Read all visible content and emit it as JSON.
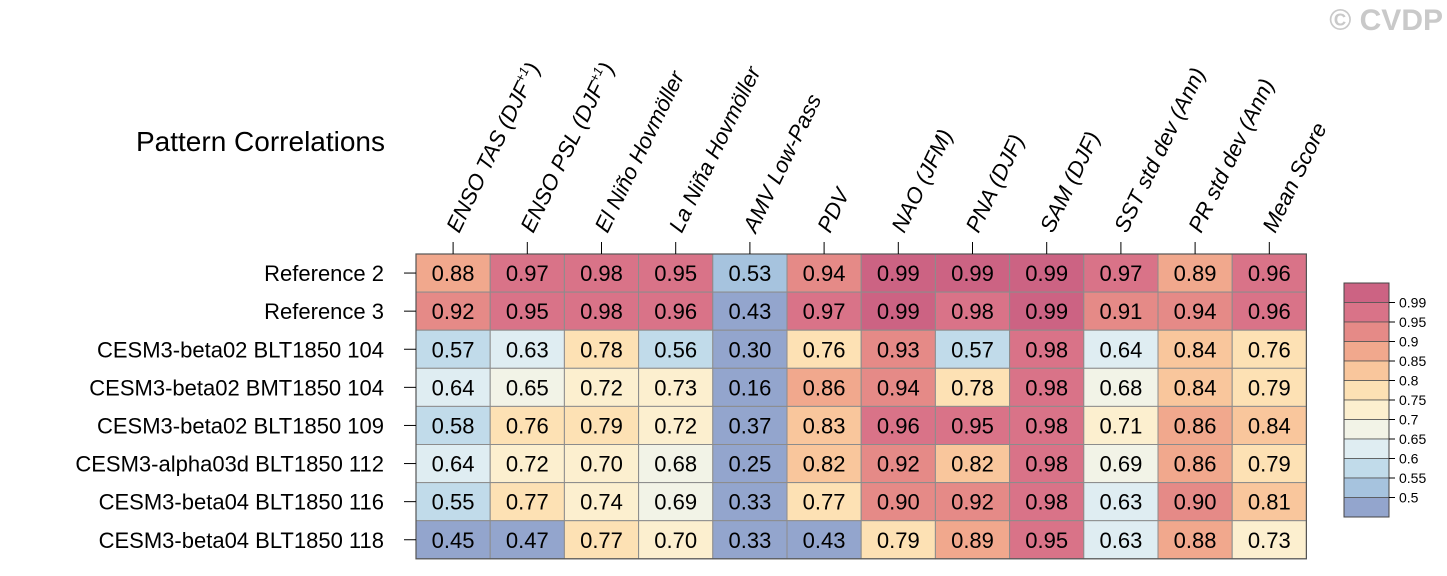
{
  "watermark": "© CVDP",
  "chart_data": {
    "type": "heatmap",
    "title": "Pattern Correlations",
    "columns": [
      {
        "base": "ENSO TAS (DJF",
        "sup": "+1",
        "tail": ")"
      },
      {
        "base": "ENSO PSL (DJF",
        "sup": "+1",
        "tail": ")"
      },
      {
        "base": "El Niño Hovmöller",
        "sup": "",
        "tail": ""
      },
      {
        "base": "La Niña Hovmöller",
        "sup": "",
        "tail": ""
      },
      {
        "base": "AMV Low-Pass",
        "sup": "",
        "tail": ""
      },
      {
        "base": "PDV",
        "sup": "",
        "tail": ""
      },
      {
        "base": "NAO (JFM)",
        "sup": "",
        "tail": ""
      },
      {
        "base": "PNA (DJF)",
        "sup": "",
        "tail": ""
      },
      {
        "base": "SAM (DJF)",
        "sup": "",
        "tail": ""
      },
      {
        "base": "SST std dev (Ann)",
        "sup": "",
        "tail": ""
      },
      {
        "base": "PR std dev (Ann)",
        "sup": "",
        "tail": ""
      },
      {
        "base": "Mean Score",
        "sup": "",
        "tail": ""
      }
    ],
    "rows": [
      {
        "label": "Reference 2",
        "values": [
          "0.88",
          "0.97",
          "0.98",
          "0.95",
          "0.53",
          "0.94",
          "0.99",
          "0.99",
          "0.99",
          "0.97",
          "0.89",
          "0.96"
        ]
      },
      {
        "label": "Reference 3",
        "values": [
          "0.92",
          "0.95",
          "0.98",
          "0.96",
          "0.43",
          "0.97",
          "0.99",
          "0.98",
          "0.99",
          "0.91",
          "0.94",
          "0.96"
        ]
      },
      {
        "label": "CESM3-beta02 BLT1850 104",
        "values": [
          "0.57",
          "0.63",
          "0.78",
          "0.56",
          "0.30",
          "0.76",
          "0.93",
          "0.57",
          "0.98",
          "0.64",
          "0.84",
          "0.76"
        ]
      },
      {
        "label": "CESM3-beta02 BMT1850 104",
        "values": [
          "0.64",
          "0.65",
          "0.72",
          "0.73",
          "0.16",
          "0.86",
          "0.94",
          "0.78",
          "0.98",
          "0.68",
          "0.84",
          "0.79"
        ]
      },
      {
        "label": "CESM3-beta02 BLT1850 109",
        "values": [
          "0.58",
          "0.76",
          "0.79",
          "0.72",
          "0.37",
          "0.83",
          "0.96",
          "0.95",
          "0.98",
          "0.71",
          "0.86",
          "0.84"
        ]
      },
      {
        "label": "CESM3-alpha03d BLT1850 112",
        "values": [
          "0.64",
          "0.72",
          "0.70",
          "0.68",
          "0.25",
          "0.82",
          "0.92",
          "0.82",
          "0.98",
          "0.69",
          "0.86",
          "0.79"
        ]
      },
      {
        "label": "CESM3-beta04 BLT1850 116",
        "values": [
          "0.55",
          "0.77",
          "0.74",
          "0.69",
          "0.33",
          "0.77",
          "0.90",
          "0.92",
          "0.98",
          "0.63",
          "0.90",
          "0.81"
        ]
      },
      {
        "label": "CESM3-beta04 BLT1850 118",
        "values": [
          "0.45",
          "0.47",
          "0.77",
          "0.70",
          "0.33",
          "0.43",
          "0.79",
          "0.89",
          "0.95",
          "0.63",
          "0.88",
          "0.73"
        ]
      }
    ],
    "colorbar": {
      "tick_labels": [
        "0.99",
        "0.95",
        "0.9",
        "0.85",
        "0.8",
        "0.75",
        "0.7",
        "0.65",
        "0.6",
        "0.55",
        "0.5"
      ],
      "thresholds": [
        0.5,
        0.55,
        0.6,
        0.65,
        0.7,
        0.75,
        0.8,
        0.85,
        0.9,
        0.95,
        0.99
      ],
      "colors": [
        "#93a5cd",
        "#a6c3de",
        "#c1dbea",
        "#dfedf2",
        "#f2f3e7",
        "#fcefcf",
        "#fde1b4",
        "#f9c69c",
        "#f1a88d",
        "#e58a87",
        "#d97388",
        "#cc6383"
      ]
    }
  }
}
